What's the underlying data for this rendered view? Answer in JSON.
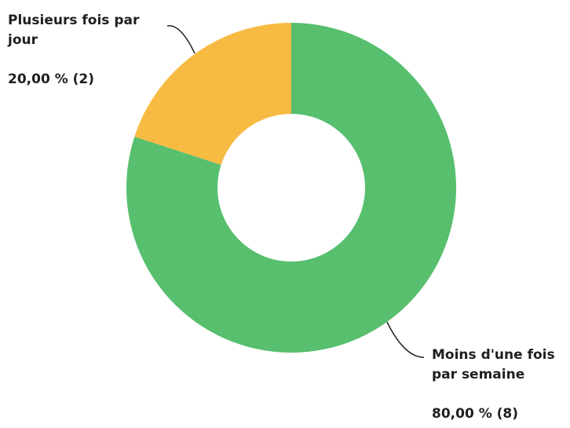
{
  "chart_data": {
    "type": "donut",
    "categories": [
      "Moins d'une fois par semaine",
      "Plusieurs fois par jour"
    ],
    "values": [
      80,
      20
    ],
    "value_labels": [
      "80,00 % (8)",
      "20,00 % (2)"
    ],
    "colors": [
      "#57bf6e",
      "#f7bb43"
    ]
  }
}
